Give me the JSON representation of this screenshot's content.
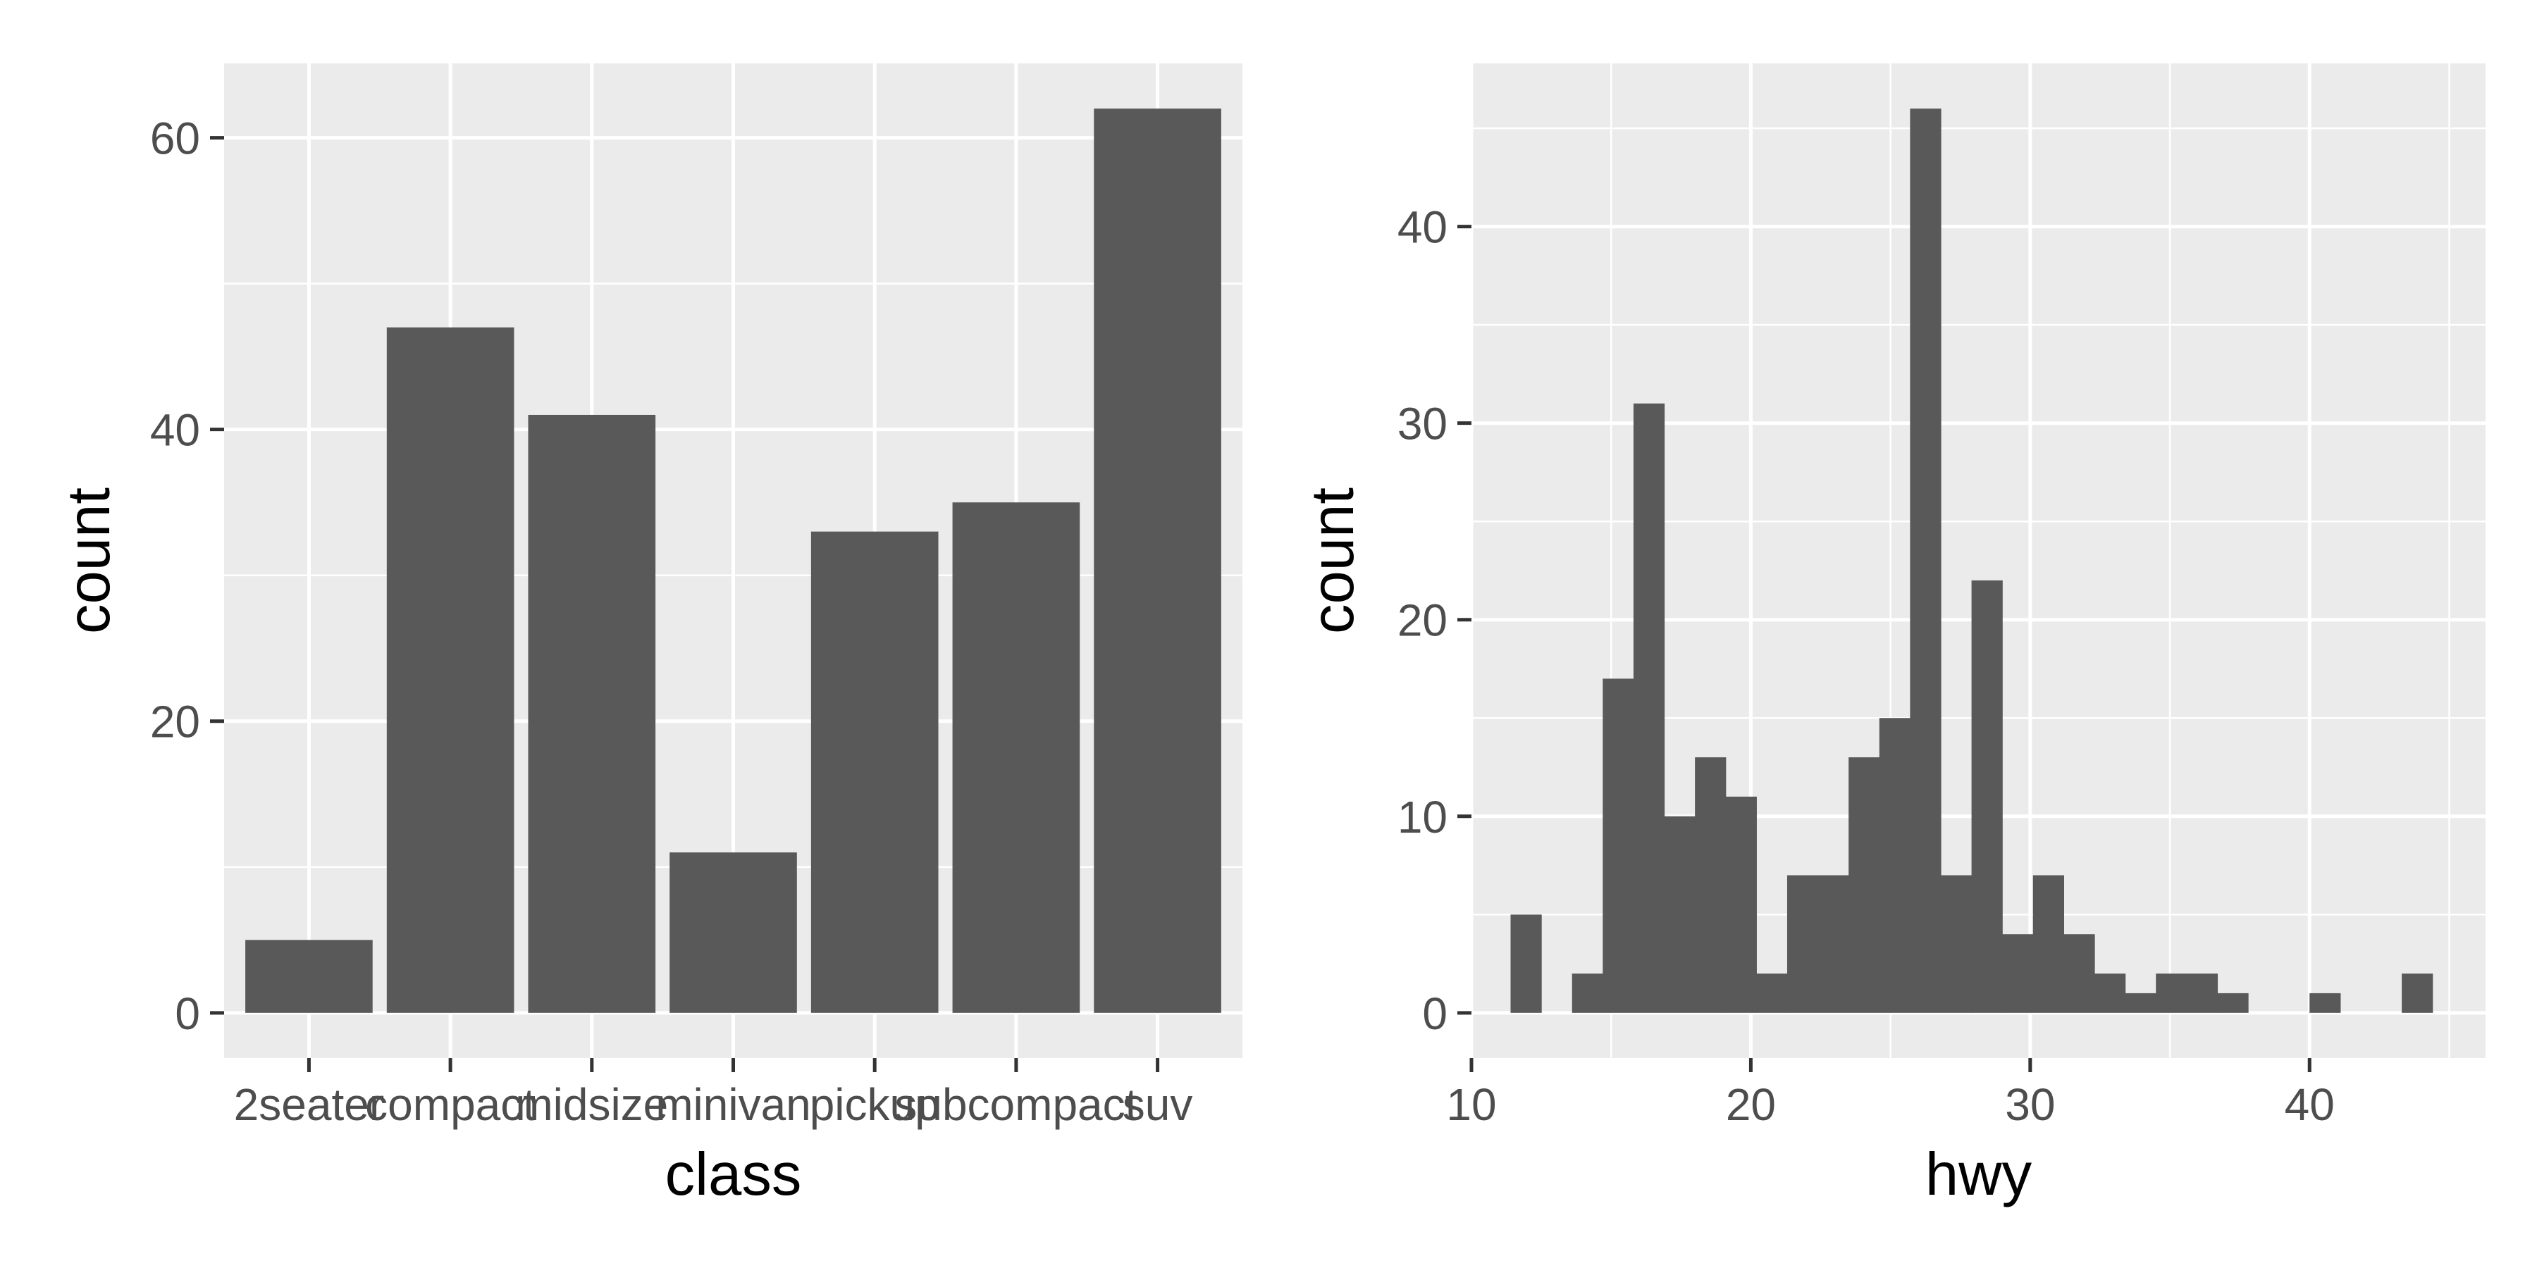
{
  "chart_data": [
    {
      "type": "bar",
      "xlabel": "class",
      "ylabel": "count",
      "categories": [
        "2seater",
        "compact",
        "midsize",
        "minivan",
        "pickup",
        "subcompact",
        "suv"
      ],
      "values": [
        5,
        47,
        41,
        11,
        33,
        35,
        62
      ],
      "ylim": [
        -3.1,
        65.1
      ],
      "yticks": [
        0,
        20,
        40,
        60
      ],
      "grid": true,
      "colors": {
        "bar": "#595959",
        "panel": "#ebebeb",
        "grid": "#ffffff"
      }
    },
    {
      "type": "bar",
      "subtype": "histogram",
      "xlabel": "hwy",
      "ylabel": "count",
      "bins": [
        {
          "x0": 11.4,
          "x1": 12.5,
          "count": 5
        },
        {
          "x0": 13.6,
          "x1": 14.7,
          "count": 2
        },
        {
          "x0": 14.7,
          "x1": 15.8,
          "count": 17
        },
        {
          "x0": 15.8,
          "x1": 16.9,
          "count": 31
        },
        {
          "x0": 16.9,
          "x1": 18.0,
          "count": 10
        },
        {
          "x0": 18.0,
          "x1": 19.1,
          "count": 13
        },
        {
          "x0": 19.1,
          "x1": 20.2,
          "count": 11
        },
        {
          "x0": 20.2,
          "x1": 21.3,
          "count": 2
        },
        {
          "x0": 21.3,
          "x1": 22.4,
          "count": 7
        },
        {
          "x0": 22.4,
          "x1": 23.5,
          "count": 7
        },
        {
          "x0": 23.5,
          "x1": 24.6,
          "count": 13
        },
        {
          "x0": 24.6,
          "x1": 25.7,
          "count": 15
        },
        {
          "x0": 25.7,
          "x1": 26.8,
          "count": 46
        },
        {
          "x0": 26.8,
          "x1": 27.9,
          "count": 7
        },
        {
          "x0": 27.9,
          "x1": 29.0,
          "count": 22
        },
        {
          "x0": 29.0,
          "x1": 30.1,
          "count": 4
        },
        {
          "x0": 30.1,
          "x1": 31.2,
          "count": 7
        },
        {
          "x0": 31.2,
          "x1": 32.3,
          "count": 4
        },
        {
          "x0": 32.3,
          "x1": 33.4,
          "count": 2
        },
        {
          "x0": 33.4,
          "x1": 34.5,
          "count": 1
        },
        {
          "x0": 34.5,
          "x1": 35.6,
          "count": 2
        },
        {
          "x0": 35.6,
          "x1": 36.7,
          "count": 2
        },
        {
          "x0": 36.7,
          "x1": 37.8,
          "count": 1
        },
        {
          "x0": 40.0,
          "x1": 41.1,
          "count": 1
        },
        {
          "x0": 43.3,
          "x1": 44.4,
          "count": 2
        }
      ],
      "xlim": [
        10,
        46.3
      ],
      "xticks": [
        10,
        20,
        30,
        40
      ],
      "ylim": [
        -2.3,
        48.3
      ],
      "yticks": [
        0,
        10,
        20,
        30,
        40
      ],
      "grid": true,
      "colors": {
        "bar": "#595959",
        "panel": "#ebebeb",
        "grid": "#ffffff"
      }
    }
  ]
}
